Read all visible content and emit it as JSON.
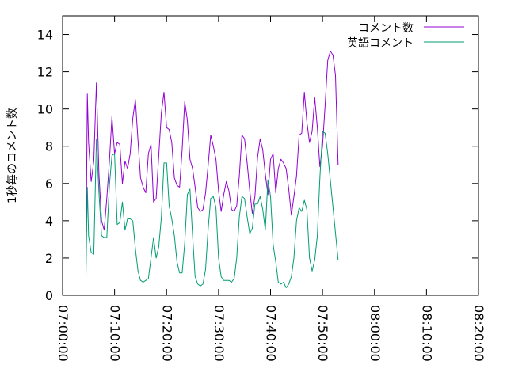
{
  "chart_data": {
    "type": "line",
    "title": "",
    "xlabel": "",
    "ylabel": "1秒毎のコメント数",
    "x_range": [
      "07:00:00",
      "08:20:00"
    ],
    "ylim": [
      0,
      15
    ],
    "y_ticks": [
      0,
      2,
      4,
      6,
      8,
      10,
      12,
      14
    ],
    "x_ticks": [
      "07:00:00",
      "07:10:00",
      "07:20:00",
      "07:30:00",
      "07:40:00",
      "07:50:00",
      "08:00:00",
      "08:10:00",
      "08:20:00"
    ],
    "legend_position": "top-right",
    "grid": false,
    "series": [
      {
        "name": "コメント数",
        "color": "#9400d3",
        "points": [
          [
            "07:04:30",
            1.6
          ],
          [
            "07:04:45",
            10.8
          ],
          [
            "07:05:00",
            8.2
          ],
          [
            "07:05:30",
            6.1
          ],
          [
            "07:06:00",
            7.2
          ],
          [
            "07:06:30",
            11.4
          ],
          [
            "07:07:00",
            6.5
          ],
          [
            "07:07:30",
            4.0
          ],
          [
            "07:08:00",
            3.5
          ],
          [
            "07:08:30",
            5.2
          ],
          [
            "07:09:00",
            7.2
          ],
          [
            "07:09:30",
            9.6
          ],
          [
            "07:10:00",
            7.6
          ],
          [
            "07:10:30",
            8.2
          ],
          [
            "07:11:00",
            8.1
          ],
          [
            "07:11:30",
            6.0
          ],
          [
            "07:12:00",
            7.2
          ],
          [
            "07:12:30",
            6.8
          ],
          [
            "07:13:00",
            7.6
          ],
          [
            "07:13:30",
            9.5
          ],
          [
            "07:14:00",
            10.5
          ],
          [
            "07:14:30",
            8.3
          ],
          [
            "07:15:00",
            6.3
          ],
          [
            "07:15:30",
            5.8
          ],
          [
            "07:16:00",
            5.5
          ],
          [
            "07:16:30",
            7.6
          ],
          [
            "07:17:00",
            8.1
          ],
          [
            "07:17:30",
            5.0
          ],
          [
            "07:18:00",
            5.2
          ],
          [
            "07:18:30",
            7.5
          ],
          [
            "07:19:00",
            9.8
          ],
          [
            "07:19:30",
            10.9
          ],
          [
            "07:20:00",
            9.0
          ],
          [
            "07:20:30",
            8.9
          ],
          [
            "07:21:00",
            8.2
          ],
          [
            "07:21:30",
            6.3
          ],
          [
            "07:22:00",
            5.9
          ],
          [
            "07:22:30",
            5.8
          ],
          [
            "07:23:00",
            7.8
          ],
          [
            "07:23:30",
            10.4
          ],
          [
            "07:24:00",
            9.4
          ],
          [
            "07:24:30",
            7.3
          ],
          [
            "07:25:00",
            6.8
          ],
          [
            "07:25:30",
            5.8
          ],
          [
            "07:26:00",
            4.7
          ],
          [
            "07:26:30",
            4.5
          ],
          [
            "07:27:00",
            4.6
          ],
          [
            "07:27:30",
            5.5
          ],
          [
            "07:28:00",
            7.0
          ],
          [
            "07:28:30",
            8.6
          ],
          [
            "07:29:00",
            8.0
          ],
          [
            "07:29:30",
            7.3
          ],
          [
            "07:30:00",
            5.6
          ],
          [
            "07:30:30",
            4.5
          ],
          [
            "07:31:00",
            5.4
          ],
          [
            "07:31:30",
            6.1
          ],
          [
            "07:32:00",
            5.6
          ],
          [
            "07:32:30",
            4.6
          ],
          [
            "07:33:00",
            4.5
          ],
          [
            "07:33:30",
            4.8
          ],
          [
            "07:34:00",
            6.4
          ],
          [
            "07:34:30",
            8.6
          ],
          [
            "07:35:00",
            8.4
          ],
          [
            "07:35:30",
            7.1
          ],
          [
            "07:36:00",
            5.6
          ],
          [
            "07:36:30",
            4.4
          ],
          [
            "07:37:00",
            5.3
          ],
          [
            "07:37:30",
            7.4
          ],
          [
            "07:38:00",
            8.4
          ],
          [
            "07:38:30",
            7.8
          ],
          [
            "07:39:00",
            6.5
          ],
          [
            "07:39:30",
            5.4
          ],
          [
            "07:40:00",
            7.3
          ],
          [
            "07:40:30",
            7.6
          ],
          [
            "07:41:00",
            5.5
          ],
          [
            "07:41:30",
            6.8
          ],
          [
            "07:42:00",
            7.3
          ],
          [
            "07:42:30",
            7.1
          ],
          [
            "07:43:00",
            6.8
          ],
          [
            "07:43:30",
            5.7
          ],
          [
            "07:44:00",
            4.3
          ],
          [
            "07:44:30",
            5.3
          ],
          [
            "07:45:00",
            6.4
          ],
          [
            "07:45:30",
            8.6
          ],
          [
            "07:46:00",
            8.7
          ],
          [
            "07:46:30",
            10.9
          ],
          [
            "07:47:00",
            9.3
          ],
          [
            "07:47:30",
            8.2
          ],
          [
            "07:48:00",
            8.8
          ],
          [
            "07:48:30",
            10.6
          ],
          [
            "07:49:00",
            9.0
          ],
          [
            "07:49:30",
            6.9
          ],
          [
            "07:50:00",
            8.0
          ],
          [
            "07:50:30",
            10.2
          ],
          [
            "07:51:00",
            12.6
          ],
          [
            "07:51:30",
            13.1
          ],
          [
            "07:52:00",
            12.9
          ],
          [
            "07:52:30",
            11.8
          ],
          [
            "07:53:00",
            7.0
          ]
        ]
      },
      {
        "name": "英語コメント",
        "color": "#009e73",
        "points": [
          [
            "07:04:30",
            1.0
          ],
          [
            "07:04:45",
            5.8
          ],
          [
            "07:05:00",
            3.2
          ],
          [
            "07:05:30",
            2.3
          ],
          [
            "07:06:00",
            2.2
          ],
          [
            "07:06:30",
            8.4
          ],
          [
            "07:07:00",
            5.5
          ],
          [
            "07:07:30",
            3.2
          ],
          [
            "07:08:00",
            3.1
          ],
          [
            "07:08:30",
            3.1
          ],
          [
            "07:09:00",
            5.9
          ],
          [
            "07:09:30",
            7.5
          ],
          [
            "07:10:00",
            7.6
          ],
          [
            "07:10:30",
            3.8
          ],
          [
            "07:11:00",
            3.9
          ],
          [
            "07:11:30",
            5.0
          ],
          [
            "07:12:00",
            3.5
          ],
          [
            "07:12:30",
            4.1
          ],
          [
            "07:13:00",
            4.1
          ],
          [
            "07:13:30",
            4.0
          ],
          [
            "07:14:00",
            2.5
          ],
          [
            "07:14:30",
            1.3
          ],
          [
            "07:15:00",
            0.8
          ],
          [
            "07:15:30",
            0.7
          ],
          [
            "07:16:00",
            0.8
          ],
          [
            "07:16:30",
            0.9
          ],
          [
            "07:17:00",
            2.0
          ],
          [
            "07:17:30",
            3.1
          ],
          [
            "07:18:00",
            2.0
          ],
          [
            "07:18:30",
            2.6
          ],
          [
            "07:19:00",
            4.2
          ],
          [
            "07:19:30",
            7.1
          ],
          [
            "07:20:00",
            7.1
          ],
          [
            "07:20:30",
            4.8
          ],
          [
            "07:21:00",
            4.1
          ],
          [
            "07:21:30",
            3.2
          ],
          [
            "07:22:00",
            1.8
          ],
          [
            "07:22:30",
            1.2
          ],
          [
            "07:23:00",
            1.2
          ],
          [
            "07:23:30",
            2.8
          ],
          [
            "07:24:00",
            5.4
          ],
          [
            "07:24:30",
            5.7
          ],
          [
            "07:25:00",
            3.2
          ],
          [
            "07:25:30",
            1.0
          ],
          [
            "07:26:00",
            0.6
          ],
          [
            "07:26:30",
            0.5
          ],
          [
            "07:27:00",
            0.6
          ],
          [
            "07:27:30",
            1.4
          ],
          [
            "07:28:00",
            3.6
          ],
          [
            "07:28:30",
            5.2
          ],
          [
            "07:29:00",
            5.3
          ],
          [
            "07:29:30",
            4.7
          ],
          [
            "07:30:00",
            2.0
          ],
          [
            "07:30:30",
            1.0
          ],
          [
            "07:31:00",
            0.8
          ],
          [
            "07:31:30",
            0.8
          ],
          [
            "07:32:00",
            0.8
          ],
          [
            "07:32:30",
            0.7
          ],
          [
            "07:33:00",
            0.9
          ],
          [
            "07:33:30",
            2.0
          ],
          [
            "07:34:00",
            4.2
          ],
          [
            "07:34:30",
            5.3
          ],
          [
            "07:35:00",
            5.2
          ],
          [
            "07:35:30",
            4.2
          ],
          [
            "07:36:00",
            3.3
          ],
          [
            "07:36:30",
            3.6
          ],
          [
            "07:37:00",
            4.9
          ],
          [
            "07:37:30",
            4.9
          ],
          [
            "07:38:00",
            5.3
          ],
          [
            "07:38:30",
            4.6
          ],
          [
            "07:39:00",
            3.5
          ],
          [
            "07:39:30",
            6.2
          ],
          [
            "07:40:00",
            5.3
          ],
          [
            "07:40:30",
            2.7
          ],
          [
            "07:41:00",
            1.8
          ],
          [
            "07:41:30",
            0.7
          ],
          [
            "07:42:00",
            0.6
          ],
          [
            "07:42:30",
            0.7
          ],
          [
            "07:43:00",
            0.4
          ],
          [
            "07:43:30",
            0.6
          ],
          [
            "07:44:00",
            1.0
          ],
          [
            "07:44:30",
            2.0
          ],
          [
            "07:45:00",
            4.0
          ],
          [
            "07:45:30",
            4.7
          ],
          [
            "07:46:00",
            4.5
          ],
          [
            "07:46:30",
            5.1
          ],
          [
            "07:47:00",
            4.6
          ],
          [
            "07:47:30",
            2.0
          ],
          [
            "07:48:00",
            1.3
          ],
          [
            "07:48:30",
            1.9
          ],
          [
            "07:49:00",
            3.2
          ],
          [
            "07:49:30",
            6.3
          ],
          [
            "07:50:00",
            8.8
          ],
          [
            "07:50:30",
            8.7
          ],
          [
            "07:51:00",
            7.6
          ],
          [
            "07:53:00",
            1.9
          ]
        ]
      }
    ]
  }
}
